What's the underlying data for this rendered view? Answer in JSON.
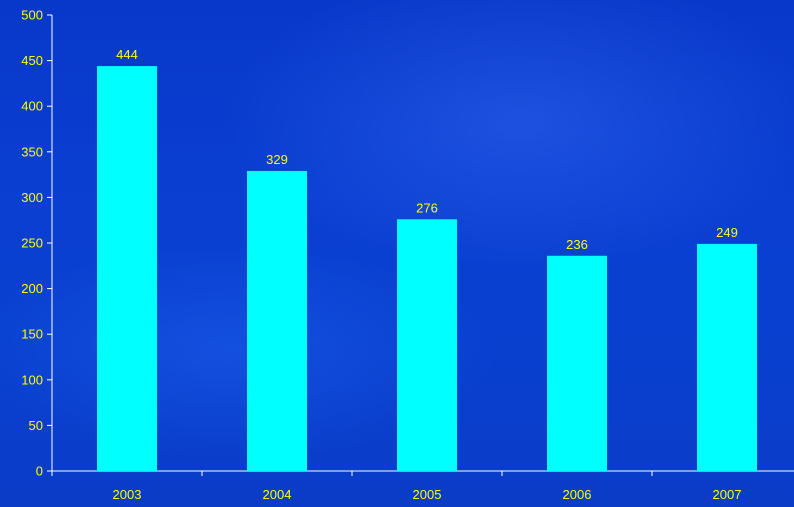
{
  "chart_data": {
    "type": "bar",
    "categories": [
      "2003",
      "2004",
      "2005",
      "2006",
      "2007"
    ],
    "values": [
      444,
      329,
      276,
      236,
      249
    ],
    "data_labels": [
      "444",
      "329",
      "276",
      "236",
      "249"
    ],
    "title": "",
    "xlabel": "",
    "ylabel": "",
    "ylim": [
      0,
      500
    ],
    "y_ticks": [
      "0",
      "50",
      "100",
      "150",
      "200",
      "250",
      "300",
      "350",
      "400",
      "450",
      "500"
    ],
    "grid": false,
    "legend": "none",
    "colors": {
      "bar": "#00ffff",
      "text": "#ffff00",
      "axis": "#ffffff",
      "background": "#0a3dcc"
    }
  }
}
